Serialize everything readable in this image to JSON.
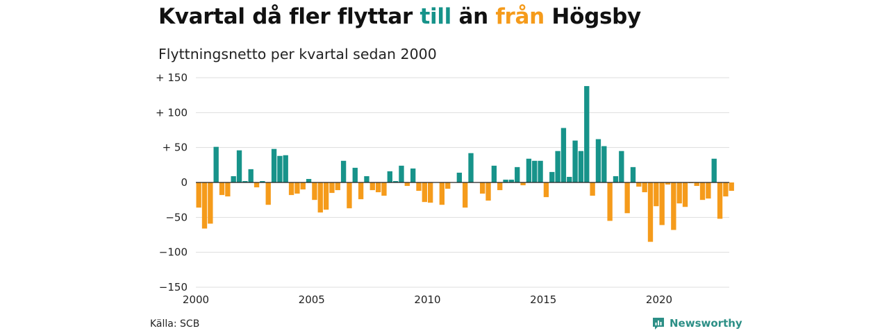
{
  "header": {
    "title_parts": [
      "Kvartal då fler flyttar ",
      "till",
      " än ",
      "från",
      " Högsby"
    ],
    "subtitle": "Flyttningsnetto per kvartal sedan 2000"
  },
  "footer": {
    "source": "Källa: SCB",
    "brand": "Newsworthy"
  },
  "colors": {
    "positive": "#17938a",
    "negative": "#f59b1b",
    "grid": "#dddddd",
    "zero_line": "#222222"
  },
  "icons": {
    "brand": "newsworthy-logo-icon"
  },
  "chart_data": {
    "type": "bar",
    "title": "Kvartal då fler flyttar till än från Högsby",
    "subtitle": "Flyttningsnetto per kvartal sedan 2000",
    "xlabel": "",
    "ylabel": "",
    "ylim": [
      -150,
      150
    ],
    "yticks": [
      150,
      100,
      50,
      0,
      -50,
      -100,
      -150
    ],
    "ytick_labels": [
      "+ 150",
      "+ 100",
      "+  50",
      "0",
      "−50",
      "−100",
      "−150"
    ],
    "xticks": [
      "2000",
      "2005",
      "2010",
      "2015",
      "2020"
    ],
    "grid": true,
    "start_year": 2000,
    "categories": [
      "2000 Q1",
      "2000 Q2",
      "2000 Q3",
      "2000 Q4",
      "2001 Q1",
      "2001 Q2",
      "2001 Q3",
      "2001 Q4",
      "2002 Q1",
      "2002 Q2",
      "2002 Q3",
      "2002 Q4",
      "2003 Q1",
      "2003 Q2",
      "2003 Q3",
      "2003 Q4",
      "2004 Q1",
      "2004 Q2",
      "2004 Q3",
      "2004 Q4",
      "2005 Q1",
      "2005 Q2",
      "2005 Q3",
      "2005 Q4",
      "2006 Q1",
      "2006 Q2",
      "2006 Q3",
      "2006 Q4",
      "2007 Q1",
      "2007 Q2",
      "2007 Q3",
      "2007 Q4",
      "2008 Q1",
      "2008 Q2",
      "2008 Q3",
      "2008 Q4",
      "2009 Q1",
      "2009 Q2",
      "2009 Q3",
      "2009 Q4",
      "2010 Q1",
      "2010 Q2",
      "2010 Q3",
      "2010 Q4",
      "2011 Q1",
      "2011 Q2",
      "2011 Q3",
      "2011 Q4",
      "2012 Q1",
      "2012 Q2",
      "2012 Q3",
      "2012 Q4",
      "2013 Q1",
      "2013 Q2",
      "2013 Q3",
      "2013 Q4",
      "2014 Q1",
      "2014 Q2",
      "2014 Q3",
      "2014 Q4",
      "2015 Q1",
      "2015 Q2",
      "2015 Q3",
      "2015 Q4",
      "2016 Q1",
      "2016 Q2",
      "2016 Q3",
      "2016 Q4",
      "2017 Q1",
      "2017 Q2",
      "2017 Q3",
      "2017 Q4",
      "2018 Q1",
      "2018 Q2",
      "2018 Q3",
      "2018 Q4",
      "2019 Q1",
      "2019 Q2",
      "2019 Q3",
      "2019 Q4",
      "2020 Q1",
      "2020 Q2",
      "2020 Q3",
      "2020 Q4",
      "2021 Q1",
      "2021 Q2",
      "2021 Q3",
      "2021 Q4",
      "2022 Q1",
      "2022 Q2",
      "2022 Q3",
      "2022 Q4",
      "2023 Q1"
    ],
    "values": [
      -36,
      -66,
      -59,
      51,
      -18,
      -20,
      9,
      46,
      2,
      19,
      -7,
      2,
      -32,
      48,
      38,
      39,
      -18,
      -16,
      -10,
      5,
      -25,
      -43,
      -39,
      -15,
      -11,
      31,
      -37,
      21,
      -24,
      9,
      -11,
      -14,
      -19,
      16,
      2,
      24,
      -5,
      20,
      -12,
      -28,
      -29,
      0,
      -32,
      -9,
      0,
      14,
      -36,
      42,
      0,
      -16,
      -26,
      24,
      -11,
      4,
      4,
      22,
      -4,
      34,
      31,
      31,
      -21,
      15,
      45,
      78,
      8,
      60,
      45,
      138,
      -19,
      62,
      52,
      -55,
      9,
      45,
      -44,
      22,
      -6,
      -14,
      -85,
      -34,
      -61,
      -3,
      -68,
      -30,
      -35,
      -1,
      -5,
      -25,
      -23,
      34,
      -52,
      -20,
      -12
    ]
  }
}
